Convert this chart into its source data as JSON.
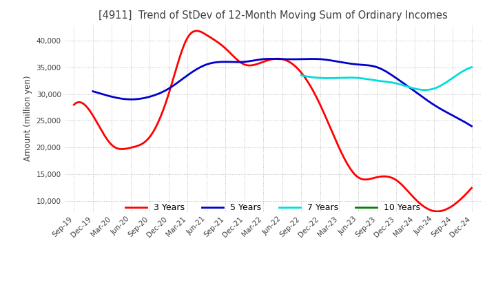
{
  "title": "[4911]  Trend of StDev of 12-Month Moving Sum of Ordinary Incomes",
  "ylabel": "Amount (million yen)",
  "ylim": [
    8000,
    43000
  ],
  "yticks": [
    10000,
    15000,
    20000,
    25000,
    30000,
    35000,
    40000
  ],
  "background_color": "#ffffff",
  "grid_color": "#bbbbbb",
  "title_color": "#404040",
  "x_labels": [
    "Sep-19",
    "Dec-19",
    "Mar-20",
    "Jun-20",
    "Sep-20",
    "Dec-20",
    "Mar-21",
    "Jun-21",
    "Sep-21",
    "Dec-21",
    "Mar-22",
    "Jun-22",
    "Sep-22",
    "Dec-22",
    "Mar-23",
    "Jun-23",
    "Sep-23",
    "Dec-23",
    "Mar-24",
    "Jun-24",
    "Sep-24",
    "Dec-24"
  ],
  "series": {
    "3 Years": {
      "color": "#ff0000",
      "values": [
        28000,
        26000,
        20500,
        20000,
        22000,
        30000,
        40500,
        41000,
        38500,
        35500,
        36000,
        36500,
        34000,
        28000,
        20000,
        14500,
        14500,
        14000,
        10500,
        8200,
        9200,
        12500
      ]
    },
    "5 Years": {
      "color": "#0000cc",
      "values": [
        null,
        30500,
        29500,
        29000,
        29500,
        31000,
        33500,
        35500,
        36000,
        36000,
        36500,
        36500,
        36500,
        36500,
        36000,
        35500,
        35000,
        33000,
        30500,
        28000,
        26000,
        24000
      ]
    },
    "7 Years": {
      "color": "#00dddd",
      "values": [
        null,
        null,
        null,
        null,
        null,
        null,
        null,
        null,
        null,
        null,
        null,
        null,
        33500,
        33000,
        33000,
        33000,
        32500,
        32000,
        31000,
        31000,
        33000,
        35000
      ]
    },
    "10 Years": {
      "color": "#008000",
      "values": [
        null,
        null,
        null,
        null,
        null,
        null,
        null,
        null,
        null,
        null,
        null,
        null,
        null,
        null,
        null,
        null,
        null,
        null,
        null,
        null,
        null,
        null
      ]
    }
  }
}
